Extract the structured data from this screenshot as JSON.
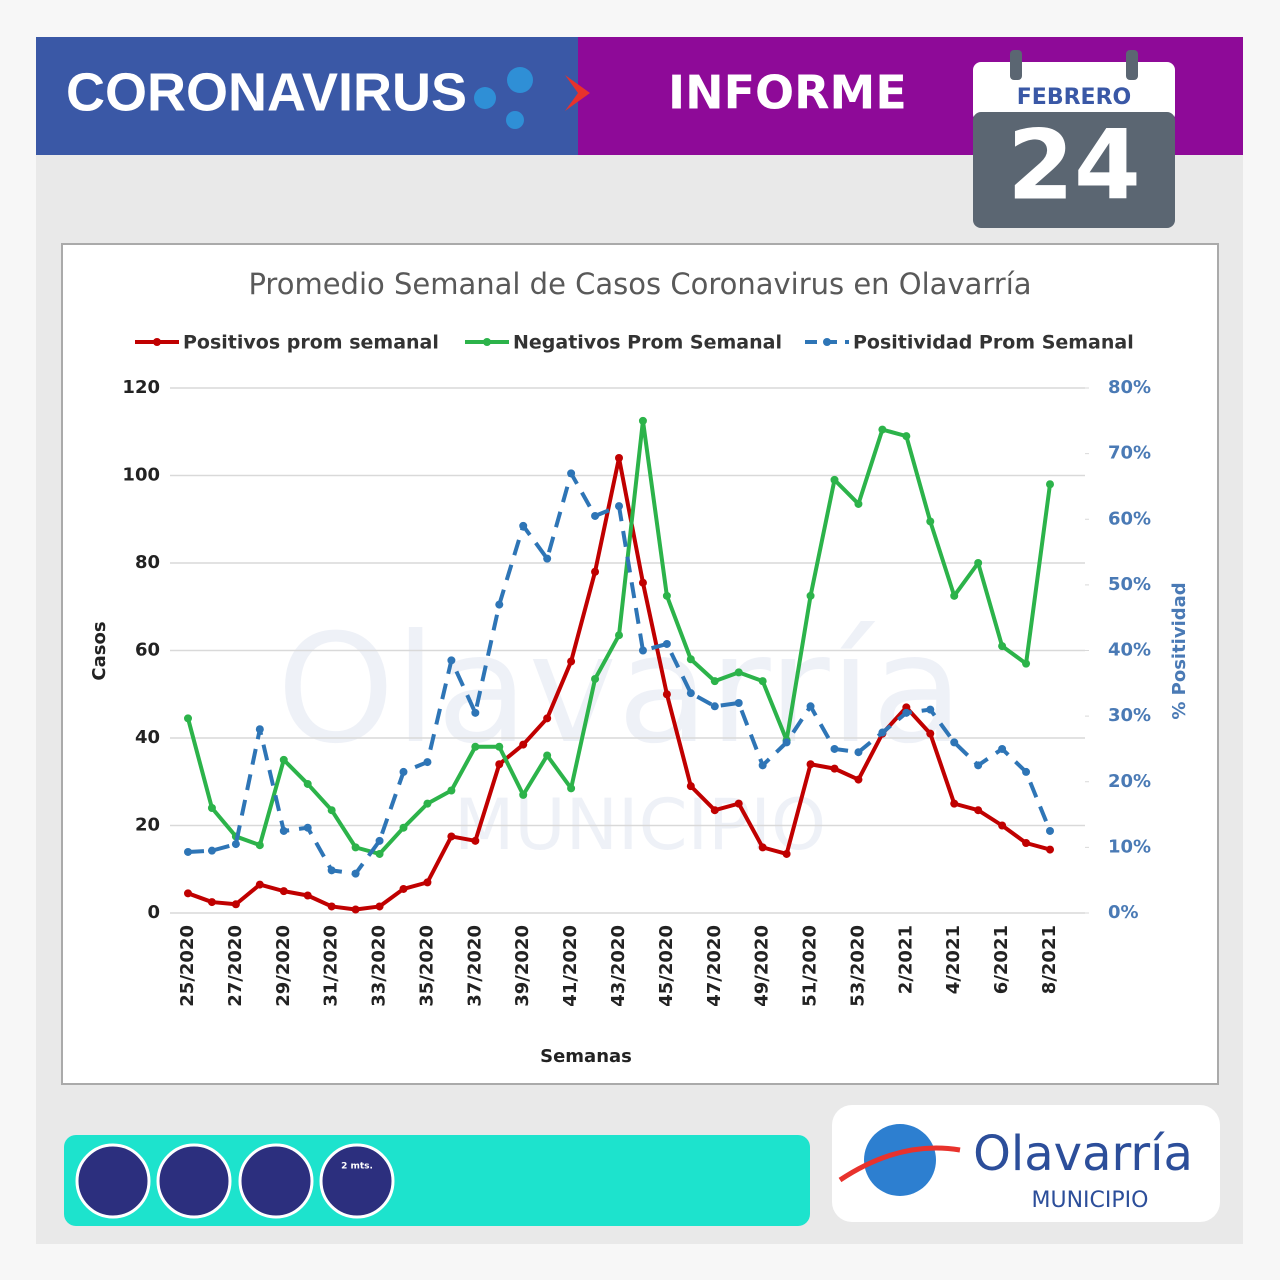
{
  "header": {
    "title": "CORONAVIRUS",
    "section": "INFORME",
    "month": "FEBRERO",
    "day": "24"
  },
  "chart_data": {
    "type": "line",
    "title": "Promedio Semanal de Casos Coronavirus en Olavarría",
    "x_label": "Semanas",
    "y_label": "Casos",
    "y2_label": "% Positividad",
    "categories": [
      "25/2020",
      null,
      "27/2020",
      null,
      "29/2020",
      null,
      "31/2020",
      null,
      "33/2020",
      null,
      "35/2020",
      null,
      "37/2020",
      null,
      "39/2020",
      null,
      "41/2020",
      null,
      "43/2020",
      null,
      "45/2020",
      null,
      "47/2020",
      null,
      "49/2020",
      null,
      "51/2020",
      null,
      "53/2020",
      null,
      "2/2021",
      null,
      "4/2021",
      null,
      "6/2021",
      null,
      "8/2021"
    ],
    "series": [
      {
        "name": "Positivos prom semanal",
        "color": "#c00000",
        "dash": false,
        "values": [
          4.5,
          2.5,
          2,
          6.5,
          5,
          4,
          1.5,
          0.8,
          1.5,
          5.5,
          7,
          17.5,
          16.5,
          34,
          38.5,
          44.5,
          57.5,
          78,
          104,
          75.5,
          50,
          29,
          23.5,
          25,
          15,
          13.5,
          34,
          33,
          30.5,
          41,
          47,
          41,
          25,
          23.5,
          20,
          16,
          14.5
        ]
      },
      {
        "name": "Negativos Prom Semanal",
        "color": "#2cb34a",
        "dash": false,
        "values": [
          44.5,
          24,
          17.5,
          15.5,
          35,
          29.5,
          23.5,
          15,
          13.5,
          19.5,
          25,
          28,
          38,
          38,
          27,
          36,
          28.5,
          53.5,
          63.5,
          112.5,
          72.5,
          58,
          53,
          55,
          53,
          39.5,
          72.5,
          99,
          93.5,
          110.5,
          109,
          89.5,
          72.5,
          80,
          61,
          57,
          98
        ]
      },
      {
        "name": "Positividad Prom Semanal",
        "color": "#2e75b6",
        "dash": true,
        "axis": "y2",
        "values": [
          9.3,
          9.5,
          10.5,
          28,
          12.5,
          13,
          6.5,
          6,
          11,
          21.5,
          23,
          38.5,
          30.5,
          47,
          59,
          54,
          67,
          60.5,
          62,
          40,
          41,
          33.5,
          31.5,
          32,
          22.5,
          26,
          31.5,
          25,
          24.5,
          27.5,
          30.5,
          31,
          26,
          22.5,
          25,
          21.5,
          12.5
        ]
      }
    ],
    "ylim": [
      0,
      120
    ],
    "yticks": [
      0,
      20,
      40,
      60,
      80,
      100,
      120
    ],
    "y2lim": [
      0,
      80
    ],
    "y2ticks": [
      {
        "value": 0,
        "label": "0%"
      },
      {
        "value": 10,
        "label": "10%"
      },
      {
        "value": 20,
        "label": "20%"
      },
      {
        "value": 30,
        "label": "30%"
      },
      {
        "value": 40,
        "label": "40%"
      },
      {
        "value": 50,
        "label": "50%"
      },
      {
        "value": 60,
        "label": "60%"
      },
      {
        "value": 70,
        "label": "70%"
      },
      {
        "value": 80,
        "label": "80%"
      }
    ],
    "grid": true,
    "legend": "top"
  },
  "watermark": {
    "name": "Olavarría",
    "subtitle": "MUNICIPIO"
  },
  "footer": {
    "distance": "2 mts.",
    "logo": "Olavarría",
    "logo_subtitle": "MUNICIPIO"
  }
}
